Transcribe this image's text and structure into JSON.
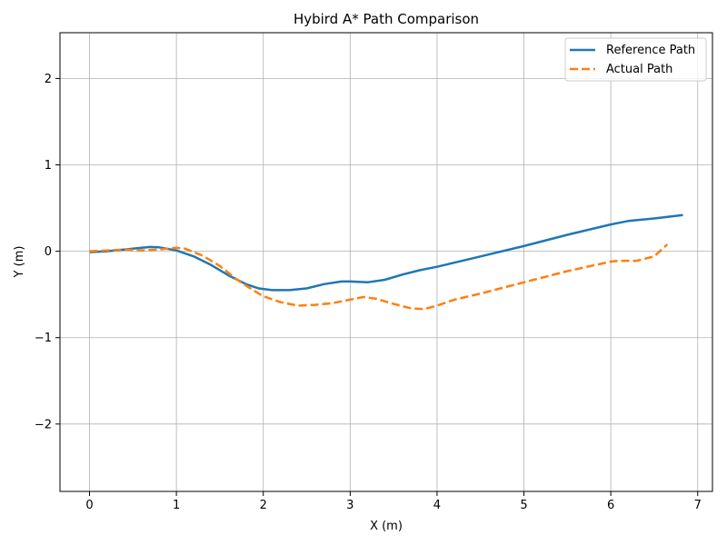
{
  "chart_data": {
    "type": "line",
    "title": "Hybird A* Path Comparison",
    "xlabel": "X (m)",
    "ylabel": "Y (m)",
    "xlim": [
      -0.34,
      7.17
    ],
    "ylim": [
      -2.78,
      2.53
    ],
    "xticks": [
      0,
      1,
      2,
      3,
      4,
      5,
      6,
      7
    ],
    "xtick_labels": [
      "0",
      "1",
      "2",
      "3",
      "4",
      "5",
      "6",
      "7"
    ],
    "yticks": [
      -2,
      -1,
      0,
      1,
      2
    ],
    "ytick_labels": [
      "−2",
      "−1",
      "0",
      "1",
      "2"
    ],
    "grid": true,
    "legend_position": "top-right",
    "series": [
      {
        "name": "Reference Path",
        "color": "#1f77b4",
        "style": "solid",
        "x": [
          0,
          0.2,
          0.4,
          0.6,
          0.7,
          0.8,
          1.0,
          1.2,
          1.4,
          1.6,
          1.8,
          1.95,
          2.1,
          2.3,
          2.5,
          2.7,
          2.9,
          3.0,
          3.2,
          3.4,
          3.6,
          3.8,
          4.0,
          4.5,
          5.0,
          5.5,
          6.0,
          6.1,
          6.2,
          6.5,
          6.83
        ],
        "y": [
          -0.01,
          0.0,
          0.02,
          0.04,
          0.05,
          0.045,
          0.01,
          -0.06,
          -0.16,
          -0.28,
          -0.38,
          -0.43,
          -0.45,
          -0.45,
          -0.43,
          -0.38,
          -0.35,
          -0.35,
          -0.36,
          -0.33,
          -0.27,
          -0.22,
          -0.18,
          -0.06,
          0.06,
          0.19,
          0.31,
          0.33,
          0.35,
          0.38,
          0.42
        ]
      },
      {
        "name": "Actual Path",
        "color": "#ff7f0e",
        "style": "dashed",
        "x": [
          0,
          0.2,
          0.4,
          0.6,
          0.8,
          1.0,
          1.1,
          1.3,
          1.5,
          1.7,
          1.85,
          2.0,
          2.2,
          2.4,
          2.6,
          2.8,
          3.0,
          3.15,
          3.3,
          3.5,
          3.7,
          3.85,
          4.0,
          4.2,
          4.5,
          5.0,
          5.5,
          6.0,
          6.1,
          6.3,
          6.5,
          6.65
        ],
        "y": [
          0.0,
          0.01,
          0.02,
          0.01,
          0.02,
          0.04,
          0.03,
          -0.05,
          -0.17,
          -0.33,
          -0.43,
          -0.52,
          -0.59,
          -0.63,
          -0.62,
          -0.6,
          -0.56,
          -0.53,
          -0.55,
          -0.61,
          -0.66,
          -0.67,
          -0.63,
          -0.56,
          -0.49,
          -0.36,
          -0.23,
          -0.12,
          -0.11,
          -0.11,
          -0.06,
          0.08
        ]
      }
    ]
  }
}
